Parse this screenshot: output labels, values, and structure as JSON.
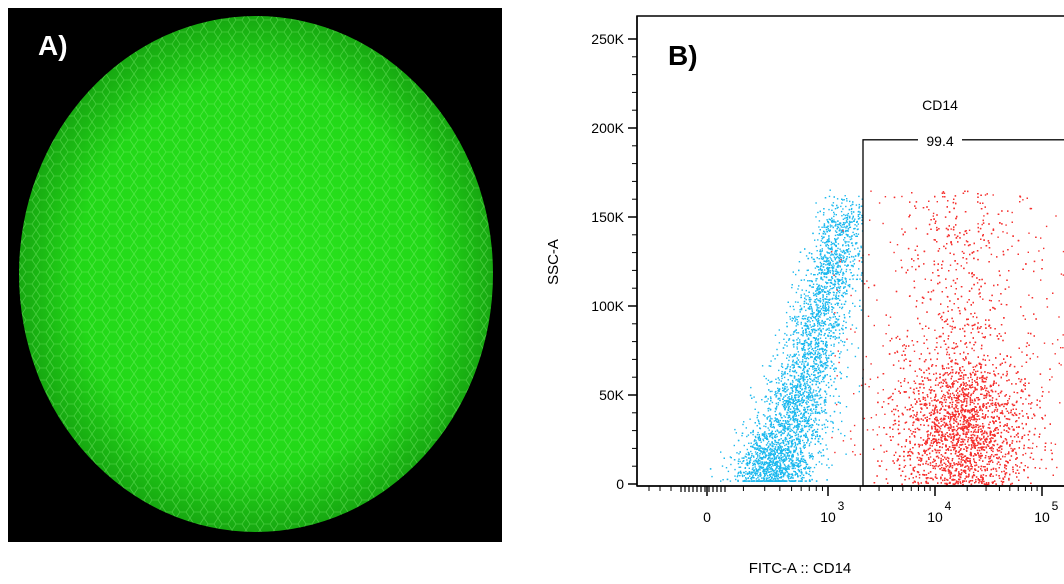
{
  "panels": {
    "a_label": "A)",
    "b_label": "B)"
  },
  "micrograph": {
    "description_color": "#22e21a"
  },
  "chart_data": {
    "type": "scatter",
    "title": "",
    "xlabel": "FITC-A :: CD14",
    "ylabel": "SSC-A",
    "x_scale": "biexponential",
    "x_ticks": [
      {
        "value": 0,
        "label": "0",
        "exp": ""
      },
      {
        "value": 1000,
        "label": "10",
        "exp": "3"
      },
      {
        "value": 10000,
        "label": "10",
        "exp": "4"
      },
      {
        "value": 100000,
        "label": "10",
        "exp": "5"
      }
    ],
    "y_ticks": [
      {
        "value": 0,
        "label": "0"
      },
      {
        "value": 50000,
        "label": "50K"
      },
      {
        "value": 100000,
        "label": "100K"
      },
      {
        "value": 150000,
        "label": "150K"
      },
      {
        "value": 200000,
        "label": "200K"
      },
      {
        "value": 250000,
        "label": "250K"
      }
    ],
    "ylim": [
      0,
      260000
    ],
    "gate": {
      "name": "CD14",
      "percent": "99.4",
      "x_range": [
        1500,
        200000
      ],
      "y_range": [
        0,
        190000
      ]
    },
    "series": [
      {
        "population": "CD14-negative",
        "color": "#1ab8ee",
        "x_range": [
          150,
          1600
        ],
        "y_range": [
          2000,
          165000
        ]
      },
      {
        "population": "CD14-positive",
        "color": "#f5302e",
        "x_center": 16000,
        "y_center": 30000,
        "y_max": 165000
      }
    ]
  }
}
